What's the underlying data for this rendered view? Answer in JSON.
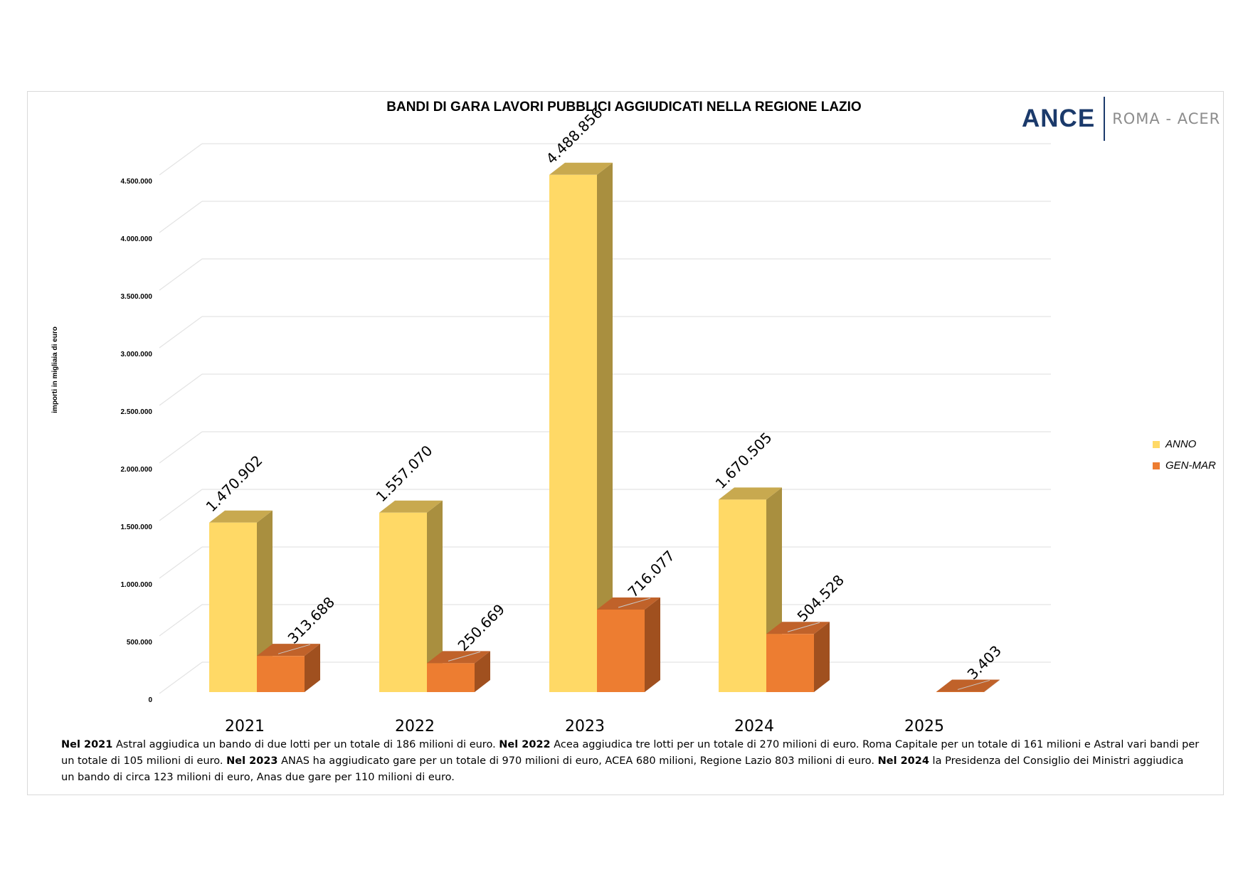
{
  "logo": {
    "ance": "ANCE",
    "roma": "ROMA - ACER"
  },
  "colors": {
    "anno_front": "#FFD966",
    "anno_side": "#A98F3F",
    "anno_top": "#C8A94F",
    "gen_front": "#ED7D31",
    "gen_side": "#A0501F",
    "gen_top": "#C0622A",
    "grid": "#e3e3e3"
  },
  "chart_data": {
    "type": "bar",
    "title": "BANDI DI GARA LAVORI PUBBLICI AGGIUDICATI NELLA REGIONE LAZIO",
    "ylabel": "importi in migliaia di euro",
    "xlabel": "",
    "categories": [
      "2021",
      "2022",
      "2023",
      "2024",
      "2025"
    ],
    "ylim": [
      0,
      4500000
    ],
    "yticks": [
      {
        "value": 0,
        "label": "0"
      },
      {
        "value": 500000,
        "label": "500.000"
      },
      {
        "value": 1000000,
        "label": "1.000.000"
      },
      {
        "value": 1500000,
        "label": "1.500.000"
      },
      {
        "value": 2000000,
        "label": "2.000.000"
      },
      {
        "value": 2500000,
        "label": "2.500.000"
      },
      {
        "value": 3000000,
        "label": "3.000.000"
      },
      {
        "value": 3500000,
        "label": "3.500.000"
      },
      {
        "value": 4000000,
        "label": "4.000.000"
      },
      {
        "value": 4500000,
        "label": "4.500.000"
      }
    ],
    "legend_position": "right",
    "grid": true,
    "series": [
      {
        "name": "ANNO",
        "values": [
          1470902,
          1557070,
          4488856,
          1670505,
          null
        ],
        "labels": [
          "1.470.902",
          "1.557.070",
          "4.488.856",
          "1.670.505",
          ""
        ]
      },
      {
        "name": "GEN-MAR",
        "values": [
          313688,
          250669,
          716077,
          504528,
          3403
        ],
        "labels": [
          "313.688",
          "250.669",
          "716.077",
          "504.528",
          "3.403"
        ]
      }
    ]
  },
  "footnote": [
    {
      "bold": "Nel 2021",
      "text": " Astral aggiudica un bando di due lotti per un totale di 186 milioni di euro. "
    },
    {
      "bold": "Nel 2022",
      "text": " Acea aggiudica tre lotti per un totale di 270 milioni di euro. Roma Capitale per un totale di 161 milioni e Astral vari bandi per un totale di 105 milioni di euro. "
    },
    {
      "bold": "Nel 2023",
      "text": " ANAS ha aggiudicato gare per un totale di 970 milioni di euro, ACEA 680 milioni, Regione Lazio 803 milioni di euro. "
    },
    {
      "bold": "Nel 2024",
      "text": " la Presidenza del Consiglio dei Ministri aggiudica un bando di circa 123 milioni di euro, Anas due gare per 110 milioni di euro."
    }
  ]
}
